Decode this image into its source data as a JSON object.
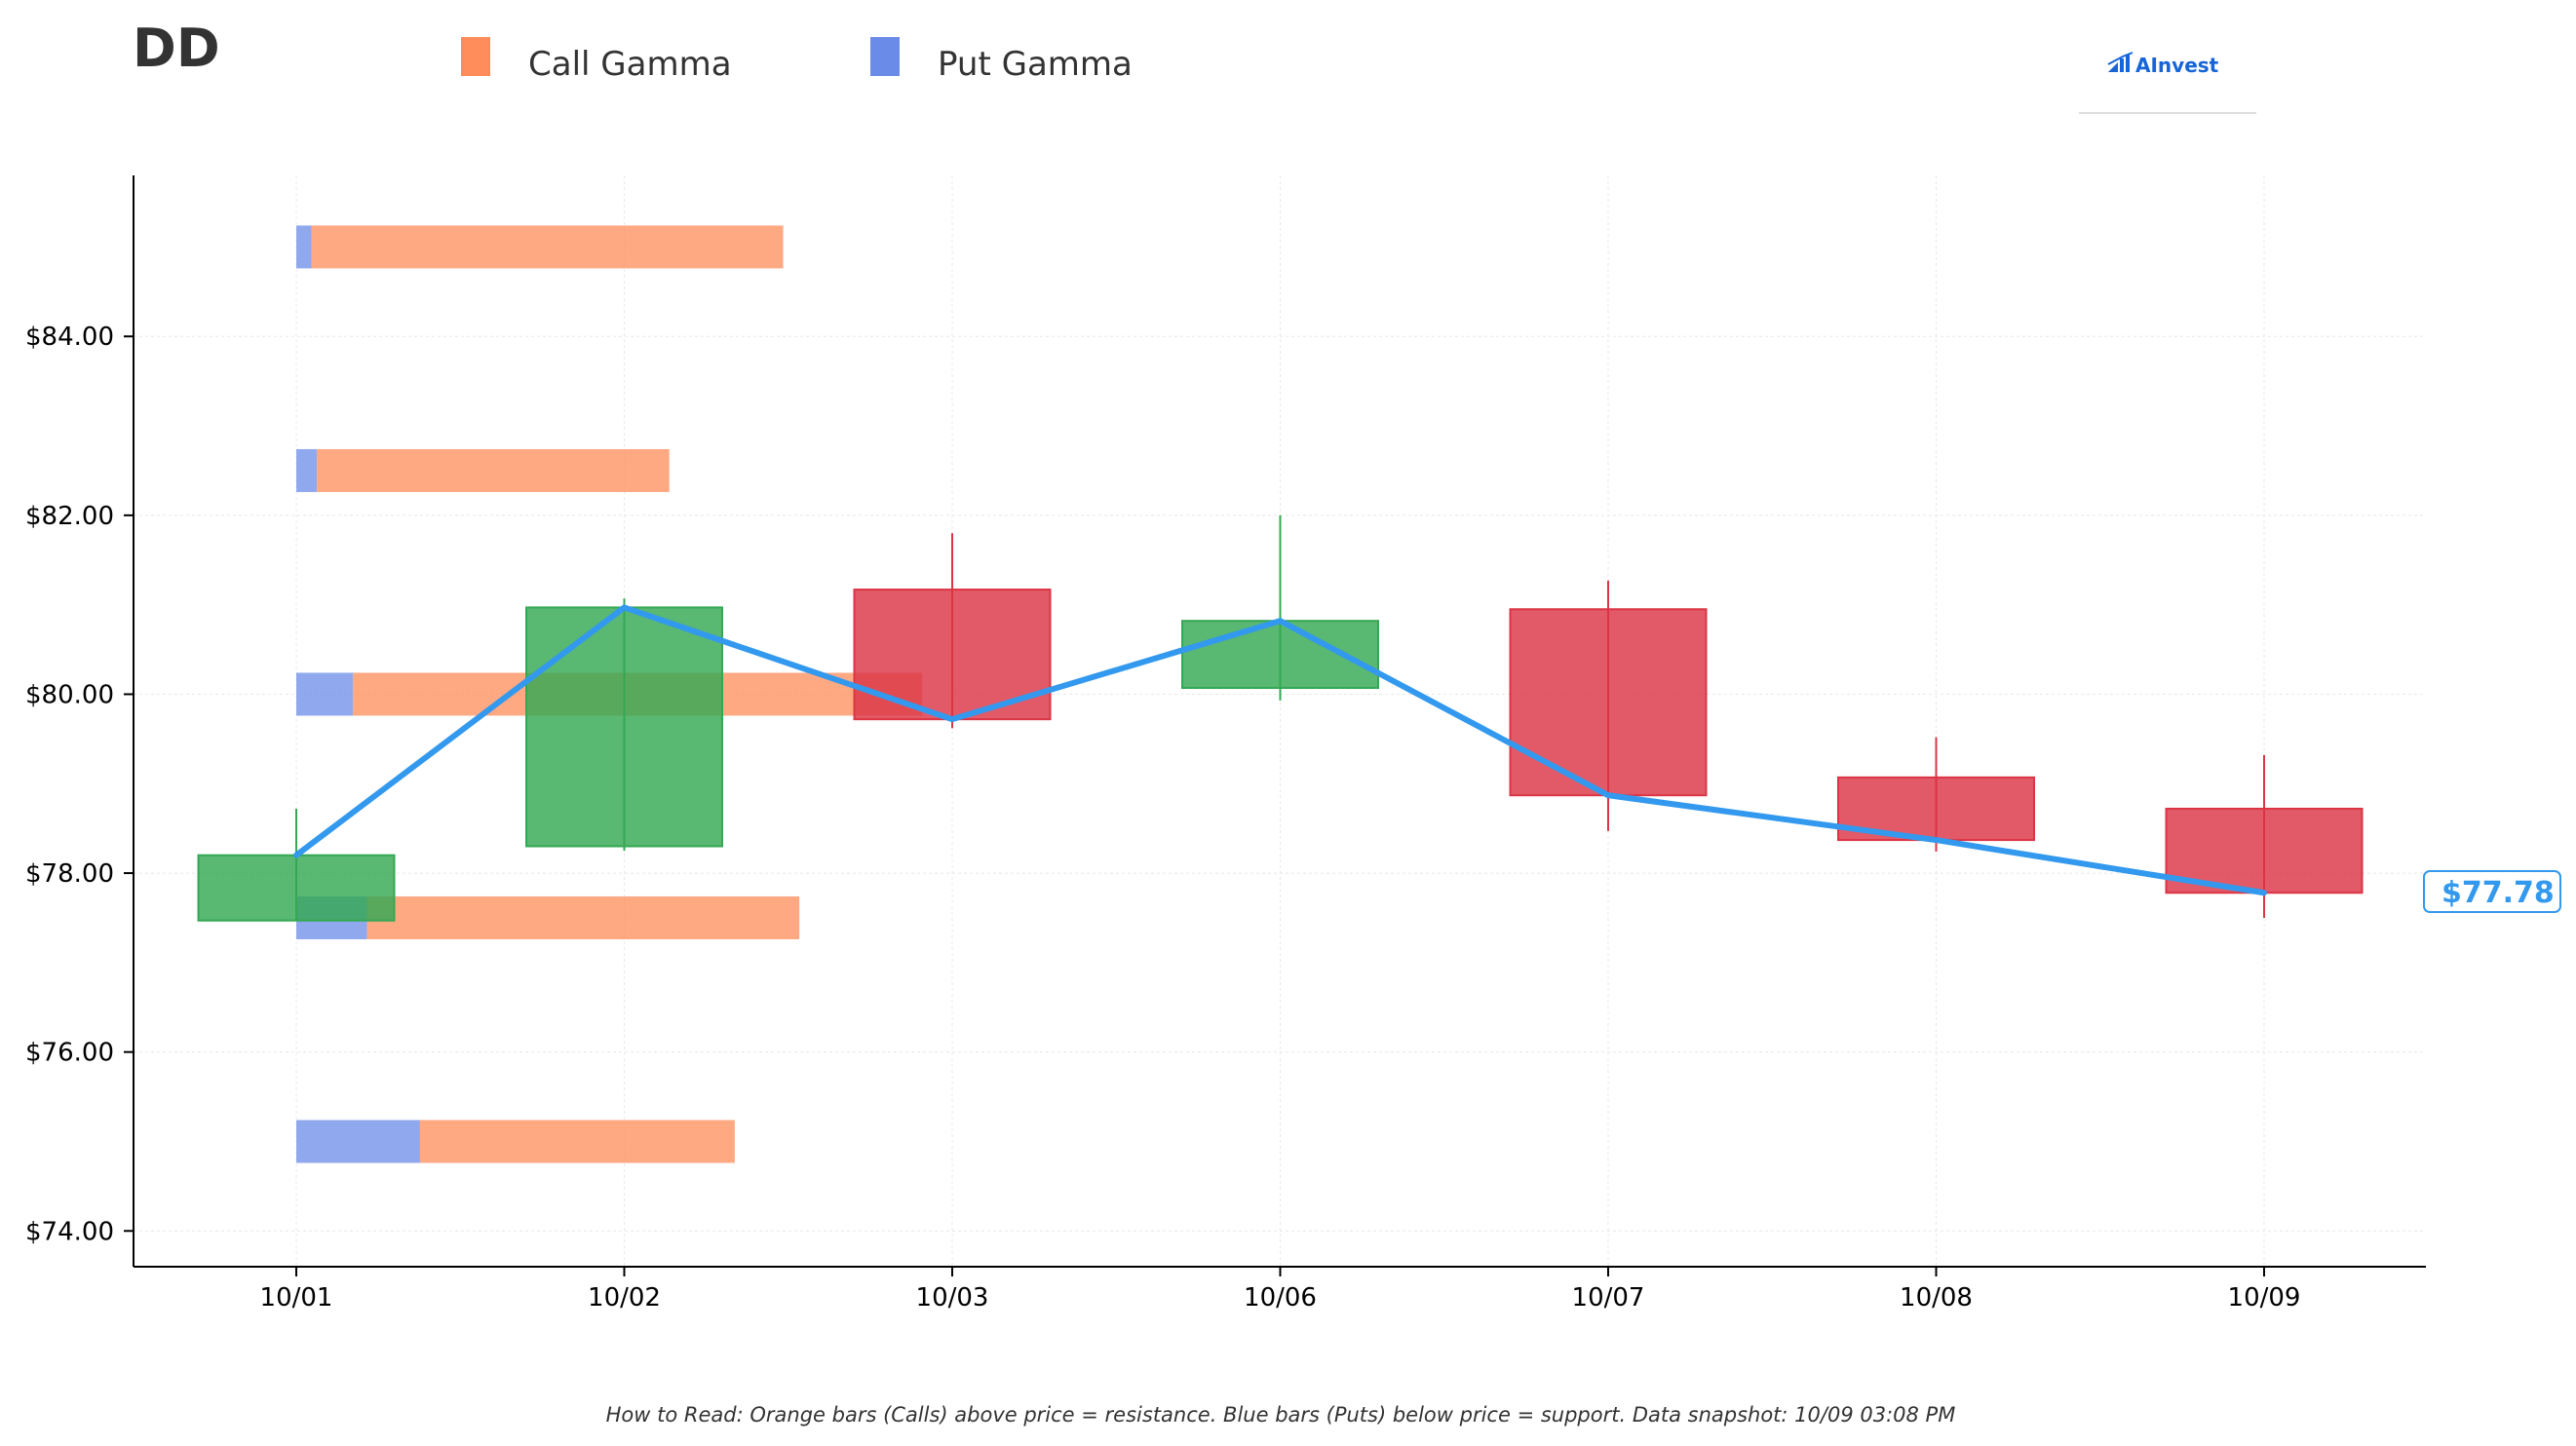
{
  "ticker": "DD",
  "legend": {
    "call_label": "Call Gamma",
    "put_label": "Put Gamma"
  },
  "logo": {
    "text": "AInvest"
  },
  "current_price_label": "$77.78",
  "footnote": "How to Read: Orange bars (Calls) above price = resistance. Blue bars (Puts) below price = support. Data snapshot: 10/09 03:08 PM",
  "colors": {
    "call": "#FF8C5A",
    "put": "#6B8BE8",
    "up": "#34A853",
    "down": "#DC3545",
    "price_line": "#3399EE",
    "logo": "#1565D8"
  },
  "chart_data": {
    "type": "candlestick",
    "categories": [
      "10/01",
      "10/02",
      "10/03",
      "10/06",
      "10/07",
      "10/08",
      "10/09"
    ],
    "ylim": [
      73.6,
      85.8
    ],
    "yticks": [
      74,
      76,
      78,
      80,
      82,
      84
    ],
    "ytick_labels": [
      "$74.00",
      "$76.00",
      "$78.00",
      "$80.00",
      "$82.00",
      "$84.00"
    ],
    "grid": true,
    "legend_position": "top",
    "candles": [
      {
        "date": "10/01",
        "open": 77.47,
        "close": 78.2,
        "high": 78.72,
        "low": 77.47
      },
      {
        "date": "10/02",
        "open": 78.3,
        "close": 80.97,
        "high": 81.07,
        "low": 78.25
      },
      {
        "date": "10/03",
        "open": 81.17,
        "close": 79.72,
        "high": 81.8,
        "low": 79.62
      },
      {
        "date": "10/06",
        "open": 80.07,
        "close": 80.82,
        "high": 82.0,
        "low": 79.93
      },
      {
        "date": "10/07",
        "open": 80.95,
        "close": 78.87,
        "high": 81.27,
        "low": 78.47
      },
      {
        "date": "10/08",
        "open": 79.07,
        "close": 78.37,
        "high": 79.52,
        "low": 78.24
      },
      {
        "date": "10/09",
        "open": 78.72,
        "close": 77.78,
        "high": 79.32,
        "low": 77.5
      }
    ],
    "price_line": [
      78.2,
      80.97,
      79.72,
      80.82,
      78.87,
      78.37,
      77.78
    ],
    "gamma_levels": [
      {
        "strike": 85.0,
        "put": 0.17,
        "call": 5.26
      },
      {
        "strike": 82.5,
        "put": 0.23,
        "call": 3.93
      },
      {
        "strike": 80.0,
        "put": 0.63,
        "call": 6.35
      },
      {
        "strike": 77.5,
        "put": 0.79,
        "call": 4.82
      },
      {
        "strike": 75.0,
        "put": 1.38,
        "call": 3.51
      }
    ]
  }
}
